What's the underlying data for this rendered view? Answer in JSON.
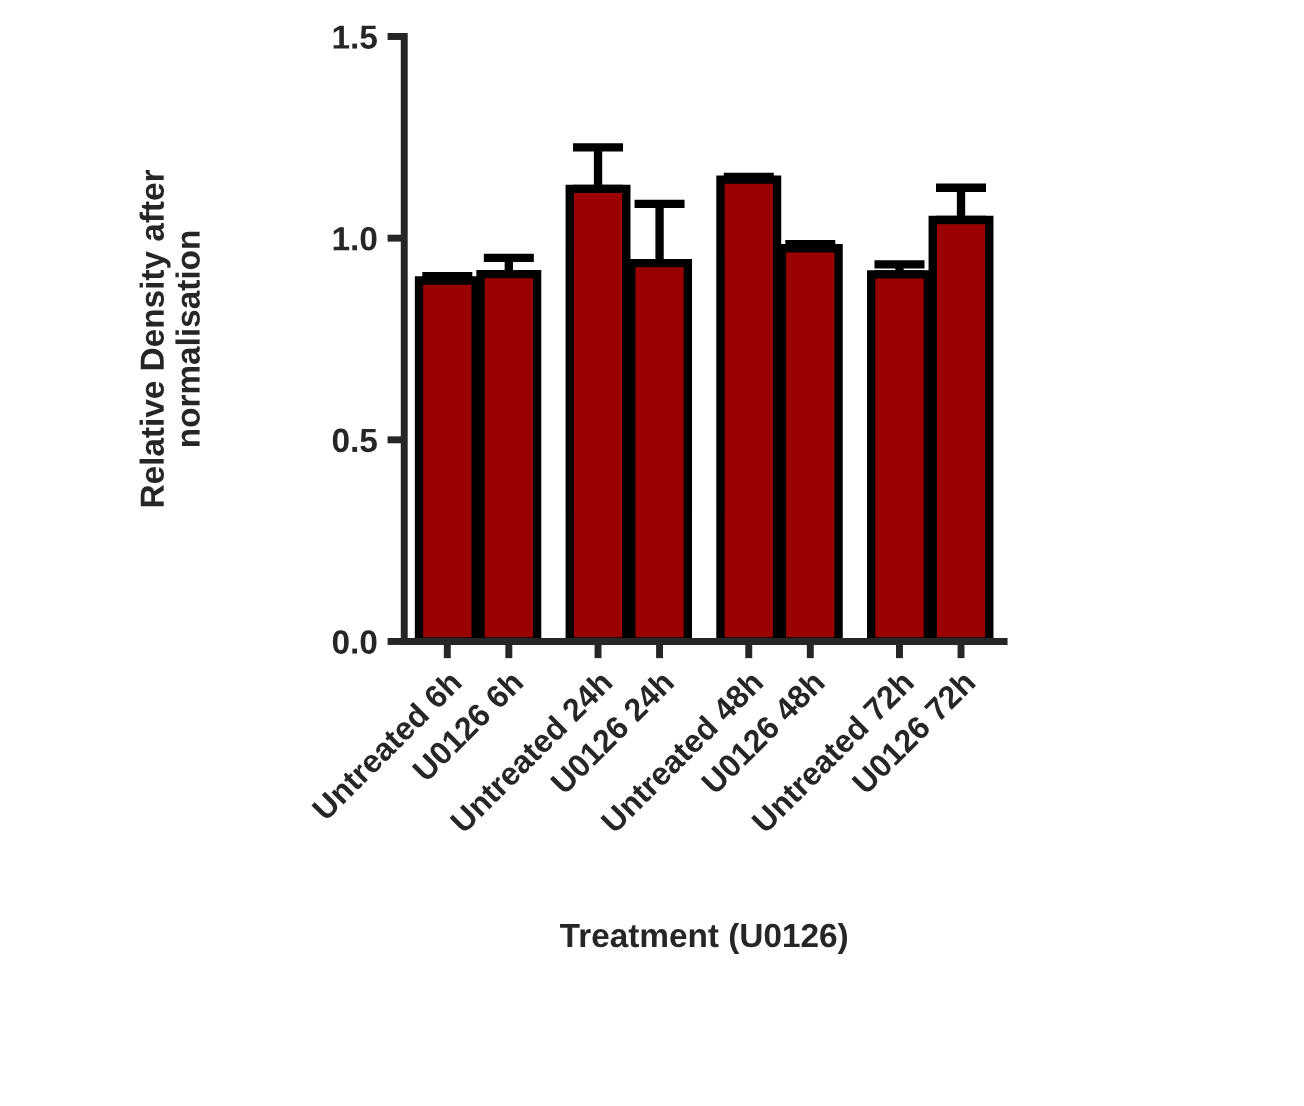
{
  "chart_data": {
    "type": "bar",
    "categories": [
      "Untreated 6h",
      "U0126 6h",
      "Untreated 24h",
      "U0126 24h",
      "Untreated 48h",
      "U0126 48h",
      "Untreated 72h",
      "U0126 72h"
    ],
    "values": [
      0.895,
      0.911,
      1.122,
      0.938,
      1.145,
      0.975,
      0.91,
      1.045
    ],
    "errors": [
      [
        0.895,
        0.906
      ],
      [
        0.911,
        0.951
      ],
      [
        1.122,
        1.225
      ],
      [
        0.938,
        1.085
      ],
      [
        1.145,
        1.152
      ],
      [
        0.975,
        0.985
      ],
      [
        0.91,
        0.935
      ],
      [
        1.045,
        1.125
      ]
    ],
    "color": "#9b0000",
    "xlabel": "Treatment (U0126)",
    "ylabel": "Relative Density after\nnormalisation",
    "ylim": [
      0,
      1.5
    ],
    "yticks": [
      {
        "value": 0,
        "label": "0.0"
      },
      {
        "value": 0.5,
        "label": "0.5"
      },
      {
        "value": 1,
        "label": "1.0"
      },
      {
        "value": 1.5,
        "label": "1.5"
      }
    ],
    "grid": false
  }
}
